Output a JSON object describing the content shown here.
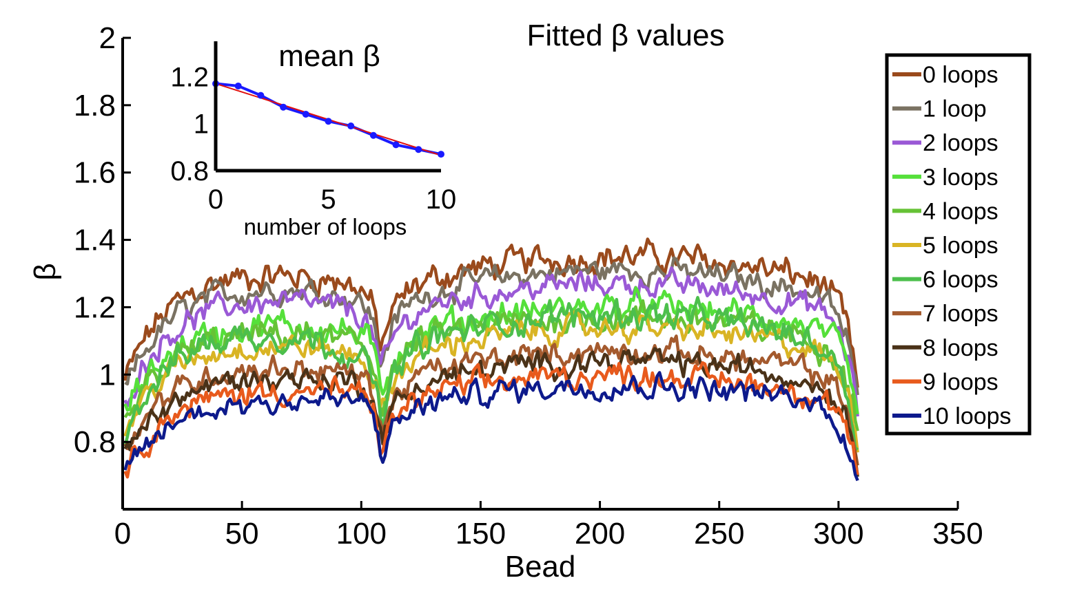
{
  "chart_data": [
    {
      "type": "line",
      "title": "Fitted β values",
      "xlabel": "Bead",
      "ylabel": "β",
      "xlim": [
        0,
        350
      ],
      "ylim": [
        0.6,
        2.0
      ],
      "xticks": [
        0,
        50,
        100,
        150,
        200,
        250,
        300,
        350
      ],
      "yticks": [
        0.8,
        1,
        1.2,
        1.4,
        1.6,
        1.8,
        2
      ],
      "ytick_labels": [
        "0.8",
        "1",
        "1.2",
        "1.4",
        "1.6",
        "1.8",
        "2"
      ],
      "legend_placement": "top-right",
      "x_range_data": [
        1,
        308
      ],
      "dip_bead": 108,
      "series": [
        {
          "name": "0 loops",
          "color": "#9a4a1c",
          "start": 0.98,
          "plateau": 1.31,
          "mid": 1.22,
          "end": 1.0,
          "noise": 0.035
        },
        {
          "name": "1 loop",
          "color": "#7a7262",
          "start": 0.95,
          "plateau": 1.27,
          "mid": 1.18,
          "end": 0.97,
          "noise": 0.03
        },
        {
          "name": "2 loops",
          "color": "#9a59d6",
          "start": 0.92,
          "plateau": 1.23,
          "mid": 1.14,
          "end": 0.94,
          "noise": 0.03
        },
        {
          "name": "3 loops",
          "color": "#55e03a",
          "start": 0.88,
          "plateau": 1.16,
          "mid": 1.08,
          "end": 0.91,
          "noise": 0.035
        },
        {
          "name": "4 loops",
          "color": "#66c236",
          "start": 0.85,
          "plateau": 1.13,
          "mid": 1.05,
          "end": 0.89,
          "noise": 0.035
        },
        {
          "name": "5 loops",
          "color": "#d9b424",
          "start": 0.83,
          "plateau": 1.1,
          "mid": 1.01,
          "end": 0.86,
          "noise": 0.03
        },
        {
          "name": "6 loops",
          "color": "#4cbf4c",
          "start": 0.82,
          "plateau": 1.14,
          "mid": 1.0,
          "end": 0.85,
          "noise": 0.035
        },
        {
          "name": "7 loops",
          "color": "#a45a2e",
          "start": 0.78,
          "plateau": 1.03,
          "mid": 0.96,
          "end": 0.8,
          "noise": 0.03
        },
        {
          "name": "8 loops",
          "color": "#4a3218",
          "start": 0.75,
          "plateau": 1.0,
          "mid": 0.94,
          "end": 0.78,
          "noise": 0.03
        },
        {
          "name": "9 loops",
          "color": "#e85a1c",
          "start": 0.71,
          "plateau": 0.96,
          "mid": 0.91,
          "end": 0.73,
          "noise": 0.03
        },
        {
          "name": "10 loops",
          "color": "#0d1a8c",
          "start": 0.69,
          "plateau": 0.93,
          "mid": 0.89,
          "end": 0.7,
          "noise": 0.03
        }
      ]
    },
    {
      "type": "line",
      "title": "mean β",
      "xlabel": "number of loops",
      "ylabel": "",
      "xlim": [
        0,
        10
      ],
      "ylim": [
        0.8,
        1.35
      ],
      "xticks": [
        0,
        5,
        10
      ],
      "yticks": [
        0.8,
        1,
        1.2
      ],
      "ytick_labels": [
        "0.8",
        "1",
        "1.2"
      ],
      "series": [
        {
          "name": "",
          "color": "#1a1aff",
          "marker": "circle",
          "x": [
            0,
            1,
            2,
            3,
            4,
            5,
            6,
            7,
            8,
            9,
            10
          ],
          "values": [
            1.17,
            1.16,
            1.12,
            1.07,
            1.04,
            1.01,
            0.99,
            0.95,
            0.91,
            0.89,
            0.87
          ]
        },
        {
          "name": "",
          "color": "#e01010",
          "marker": "none",
          "fit": "linear",
          "x": [
            0,
            10
          ],
          "values": [
            1.17,
            0.865
          ]
        }
      ]
    }
  ]
}
